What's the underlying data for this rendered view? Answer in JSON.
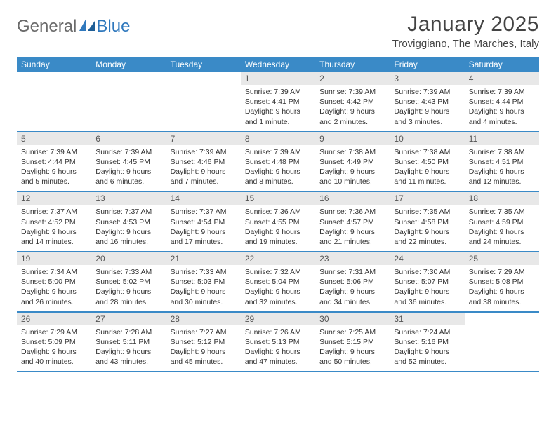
{
  "logo": {
    "text1": "General",
    "text2": "Blue"
  },
  "title": "January 2025",
  "location": "Troviggiano, The Marches, Italy",
  "colors": {
    "header_bg": "#3a8ac7",
    "header_text": "#ffffff",
    "daynum_bg": "#e8e8e8",
    "border": "#3a8ac7",
    "logo_gray": "#6a6a6a",
    "logo_blue": "#2f78bd"
  },
  "day_names": [
    "Sunday",
    "Monday",
    "Tuesday",
    "Wednesday",
    "Thursday",
    "Friday",
    "Saturday"
  ],
  "weeks": [
    [
      {
        "empty": true
      },
      {
        "empty": true
      },
      {
        "empty": true
      },
      {
        "n": "1",
        "sr": "7:39 AM",
        "ss": "4:41 PM",
        "dl": "9 hours and 1 minute."
      },
      {
        "n": "2",
        "sr": "7:39 AM",
        "ss": "4:42 PM",
        "dl": "9 hours and 2 minutes."
      },
      {
        "n": "3",
        "sr": "7:39 AM",
        "ss": "4:43 PM",
        "dl": "9 hours and 3 minutes."
      },
      {
        "n": "4",
        "sr": "7:39 AM",
        "ss": "4:44 PM",
        "dl": "9 hours and 4 minutes."
      }
    ],
    [
      {
        "n": "5",
        "sr": "7:39 AM",
        "ss": "4:44 PM",
        "dl": "9 hours and 5 minutes."
      },
      {
        "n": "6",
        "sr": "7:39 AM",
        "ss": "4:45 PM",
        "dl": "9 hours and 6 minutes."
      },
      {
        "n": "7",
        "sr": "7:39 AM",
        "ss": "4:46 PM",
        "dl": "9 hours and 7 minutes."
      },
      {
        "n": "8",
        "sr": "7:39 AM",
        "ss": "4:48 PM",
        "dl": "9 hours and 8 minutes."
      },
      {
        "n": "9",
        "sr": "7:38 AM",
        "ss": "4:49 PM",
        "dl": "9 hours and 10 minutes."
      },
      {
        "n": "10",
        "sr": "7:38 AM",
        "ss": "4:50 PM",
        "dl": "9 hours and 11 minutes."
      },
      {
        "n": "11",
        "sr": "7:38 AM",
        "ss": "4:51 PM",
        "dl": "9 hours and 12 minutes."
      }
    ],
    [
      {
        "n": "12",
        "sr": "7:37 AM",
        "ss": "4:52 PM",
        "dl": "9 hours and 14 minutes."
      },
      {
        "n": "13",
        "sr": "7:37 AM",
        "ss": "4:53 PM",
        "dl": "9 hours and 16 minutes."
      },
      {
        "n": "14",
        "sr": "7:37 AM",
        "ss": "4:54 PM",
        "dl": "9 hours and 17 minutes."
      },
      {
        "n": "15",
        "sr": "7:36 AM",
        "ss": "4:55 PM",
        "dl": "9 hours and 19 minutes."
      },
      {
        "n": "16",
        "sr": "7:36 AM",
        "ss": "4:57 PM",
        "dl": "9 hours and 21 minutes."
      },
      {
        "n": "17",
        "sr": "7:35 AM",
        "ss": "4:58 PM",
        "dl": "9 hours and 22 minutes."
      },
      {
        "n": "18",
        "sr": "7:35 AM",
        "ss": "4:59 PM",
        "dl": "9 hours and 24 minutes."
      }
    ],
    [
      {
        "n": "19",
        "sr": "7:34 AM",
        "ss": "5:00 PM",
        "dl": "9 hours and 26 minutes."
      },
      {
        "n": "20",
        "sr": "7:33 AM",
        "ss": "5:02 PM",
        "dl": "9 hours and 28 minutes."
      },
      {
        "n": "21",
        "sr": "7:33 AM",
        "ss": "5:03 PM",
        "dl": "9 hours and 30 minutes."
      },
      {
        "n": "22",
        "sr": "7:32 AM",
        "ss": "5:04 PM",
        "dl": "9 hours and 32 minutes."
      },
      {
        "n": "23",
        "sr": "7:31 AM",
        "ss": "5:06 PM",
        "dl": "9 hours and 34 minutes."
      },
      {
        "n": "24",
        "sr": "7:30 AM",
        "ss": "5:07 PM",
        "dl": "9 hours and 36 minutes."
      },
      {
        "n": "25",
        "sr": "7:29 AM",
        "ss": "5:08 PM",
        "dl": "9 hours and 38 minutes."
      }
    ],
    [
      {
        "n": "26",
        "sr": "7:29 AM",
        "ss": "5:09 PM",
        "dl": "9 hours and 40 minutes."
      },
      {
        "n": "27",
        "sr": "7:28 AM",
        "ss": "5:11 PM",
        "dl": "9 hours and 43 minutes."
      },
      {
        "n": "28",
        "sr": "7:27 AM",
        "ss": "5:12 PM",
        "dl": "9 hours and 45 minutes."
      },
      {
        "n": "29",
        "sr": "7:26 AM",
        "ss": "5:13 PM",
        "dl": "9 hours and 47 minutes."
      },
      {
        "n": "30",
        "sr": "7:25 AM",
        "ss": "5:15 PM",
        "dl": "9 hours and 50 minutes."
      },
      {
        "n": "31",
        "sr": "7:24 AM",
        "ss": "5:16 PM",
        "dl": "9 hours and 52 minutes."
      },
      {
        "empty": true
      }
    ]
  ]
}
